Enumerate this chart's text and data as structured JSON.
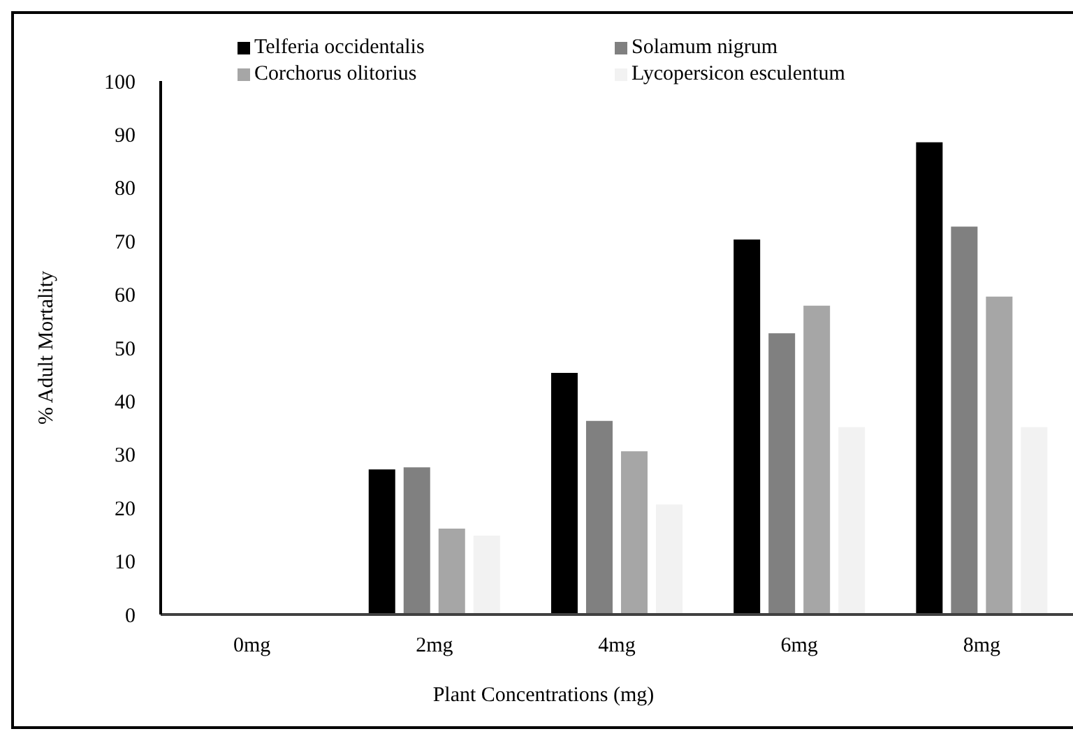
{
  "chart_data": {
    "type": "bar",
    "xlabel": "Plant Concentrations (mg)",
    "ylabel": "% Adult Mortality",
    "categories": [
      "0mg",
      "2mg",
      "4mg",
      "6mg",
      "8mg"
    ],
    "series": [
      {
        "name": "Telferia occidentalis",
        "color": "#000000",
        "values": [
          0,
          27.2,
          45.3,
          70.3,
          88.5
        ]
      },
      {
        "name": "Solamum nigrum",
        "color": "#808080",
        "values": [
          0,
          27.6,
          36.3,
          52.7,
          72.7
        ]
      },
      {
        "name": "Corchorus olitorius",
        "color": "#a6a6a6",
        "values": [
          0,
          16.1,
          30.6,
          57.9,
          59.6
        ]
      },
      {
        "name": "Lycopersicon esculentum",
        "color": "#f2f2f2",
        "values": [
          0,
          14.8,
          20.6,
          35.1,
          35.1
        ]
      }
    ],
    "ylim": [
      0,
      100
    ],
    "yticks": [
      0,
      10,
      20,
      30,
      40,
      50,
      60,
      70,
      80,
      90,
      100
    ],
    "grid": false,
    "legend": "top"
  }
}
